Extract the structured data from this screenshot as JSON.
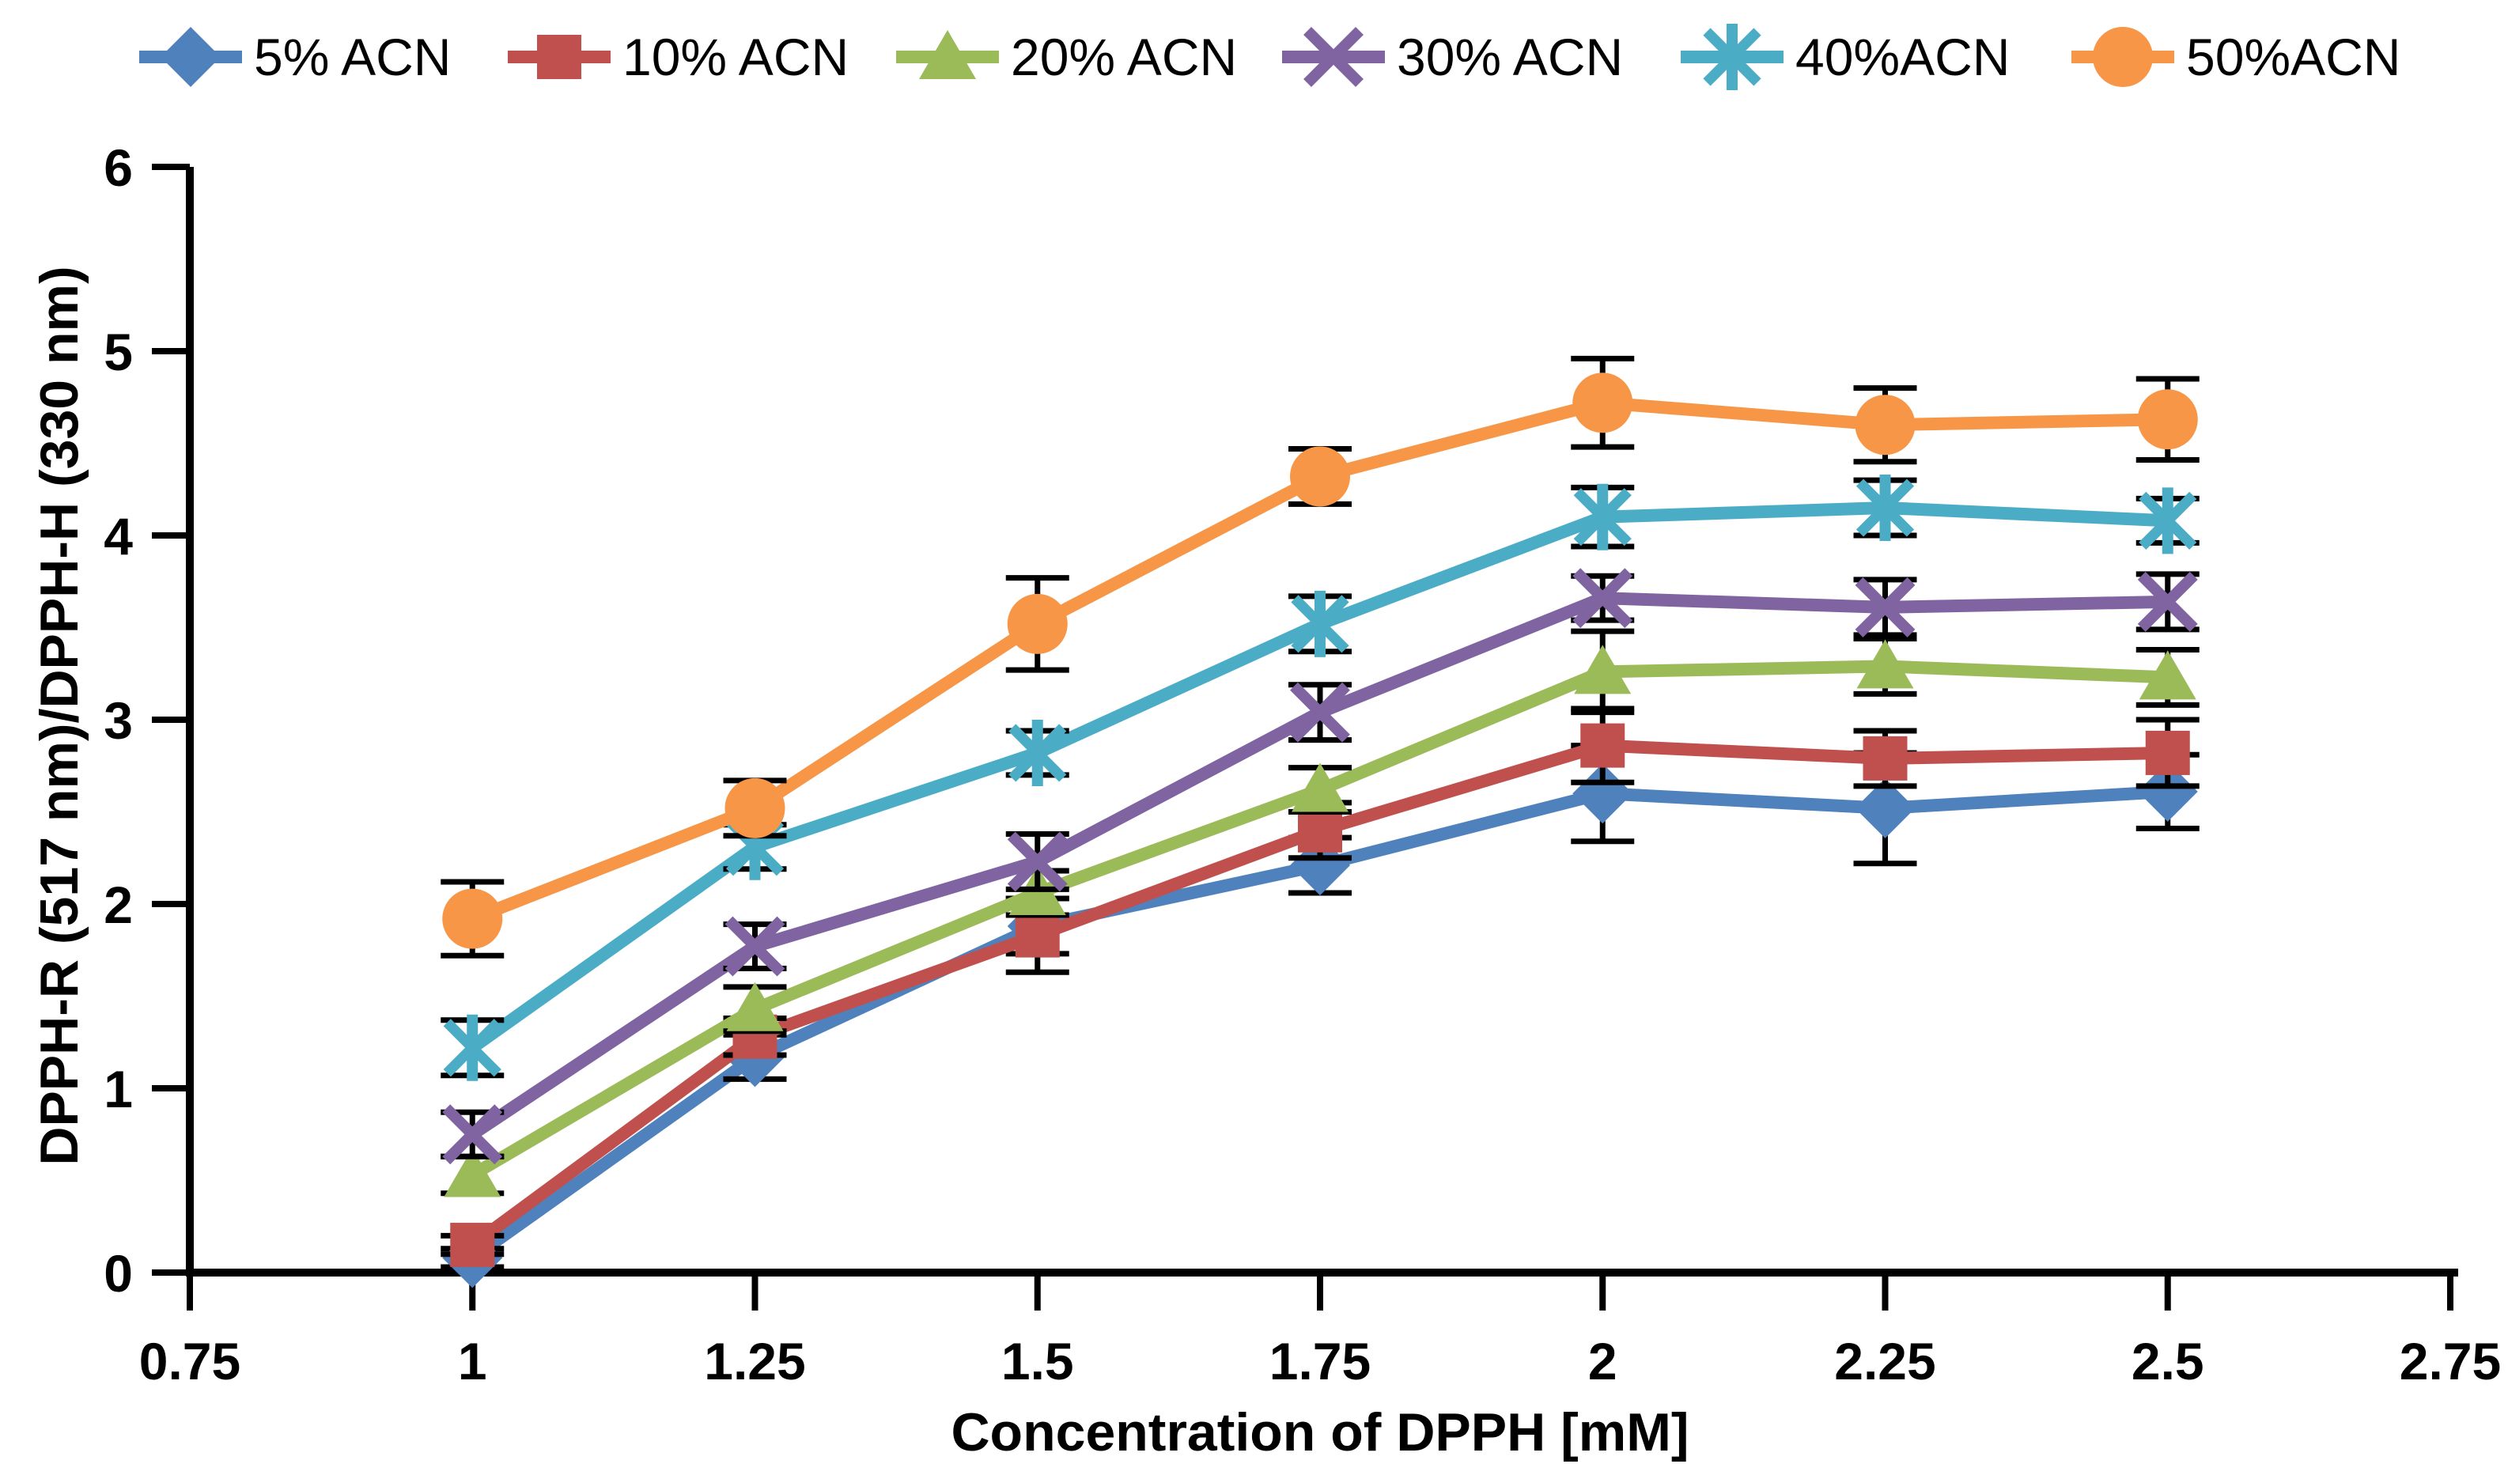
{
  "chart_data": {
    "type": "line",
    "title": "",
    "xlabel": "Concentration of DPPH [mM]",
    "ylabel": "DPPH-R (517 nm)/DPPH-H (330 nm)",
    "xlim": [
      0.75,
      2.75
    ],
    "ylim": [
      0,
      6
    ],
    "grid": false,
    "legend_position": "top",
    "background": "#FFFFFF",
    "axis_color": "#000000",
    "x_tick_labels": [
      "0.75",
      "1",
      "1.25",
      "1.5",
      "1.75",
      "2",
      "2.25",
      "2.5",
      "2.75"
    ],
    "x_ticks": [
      0.75,
      1,
      1.25,
      1.5,
      1.75,
      2,
      2.25,
      2.5,
      2.75
    ],
    "y_tick_labels": [
      "0",
      "1",
      "2",
      "3",
      "4",
      "5",
      "6"
    ],
    "y_ticks": [
      0,
      1,
      2,
      3,
      4,
      5,
      6
    ],
    "x": [
      1,
      1.25,
      1.5,
      1.75,
      2,
      2.25,
      2.5
    ],
    "error_bar_color": "#000000",
    "series": [
      {
        "name": "5% ACN",
        "color": "#4F81BD",
        "marker": "diamond",
        "values": [
          0.08,
          1.17,
          1.88,
          2.21,
          2.6,
          2.52,
          2.61
        ],
        "errors": [
          0.05,
          0.12,
          0.15,
          0.15,
          0.26,
          0.3,
          0.2
        ]
      },
      {
        "name": "10% ACN",
        "color": "#C0504D",
        "marker": "square",
        "values": [
          0.15,
          1.28,
          1.83,
          2.4,
          2.86,
          2.79,
          2.82
        ],
        "errors": [
          0.05,
          0.1,
          0.2,
          0.15,
          0.2,
          0.15,
          0.18
        ]
      },
      {
        "name": "20% ACN",
        "color": "#9BBB59",
        "marker": "triangle",
        "values": [
          0.53,
          1.43,
          2.06,
          2.62,
          3.26,
          3.29,
          3.23
        ],
        "errors": [
          0.1,
          0.12,
          0.12,
          0.12,
          0.22,
          0.15,
          0.15
        ]
      },
      {
        "name": "30% ACN",
        "color": "#8064A2",
        "marker": "x",
        "values": [
          0.75,
          1.77,
          2.23,
          3.04,
          3.66,
          3.61,
          3.64
        ],
        "errors": [
          0.12,
          0.12,
          0.15,
          0.15,
          0.12,
          0.15,
          0.15
        ]
      },
      {
        "name": "40%ACN",
        "color": "#4BACC6",
        "marker": "asterisk",
        "values": [
          1.22,
          2.31,
          2.82,
          3.52,
          4.1,
          4.15,
          4.08
        ],
        "errors": [
          0.15,
          0.12,
          0.12,
          0.15,
          0.16,
          0.15,
          0.12
        ]
      },
      {
        "name": "50%ACN",
        "color": "#F79646",
        "marker": "circle",
        "values": [
          1.92,
          2.52,
          3.52,
          4.32,
          4.72,
          4.6,
          4.63
        ],
        "errors": [
          0.2,
          0.15,
          0.25,
          0.15,
          0.24,
          0.2,
          0.22
        ]
      }
    ]
  }
}
